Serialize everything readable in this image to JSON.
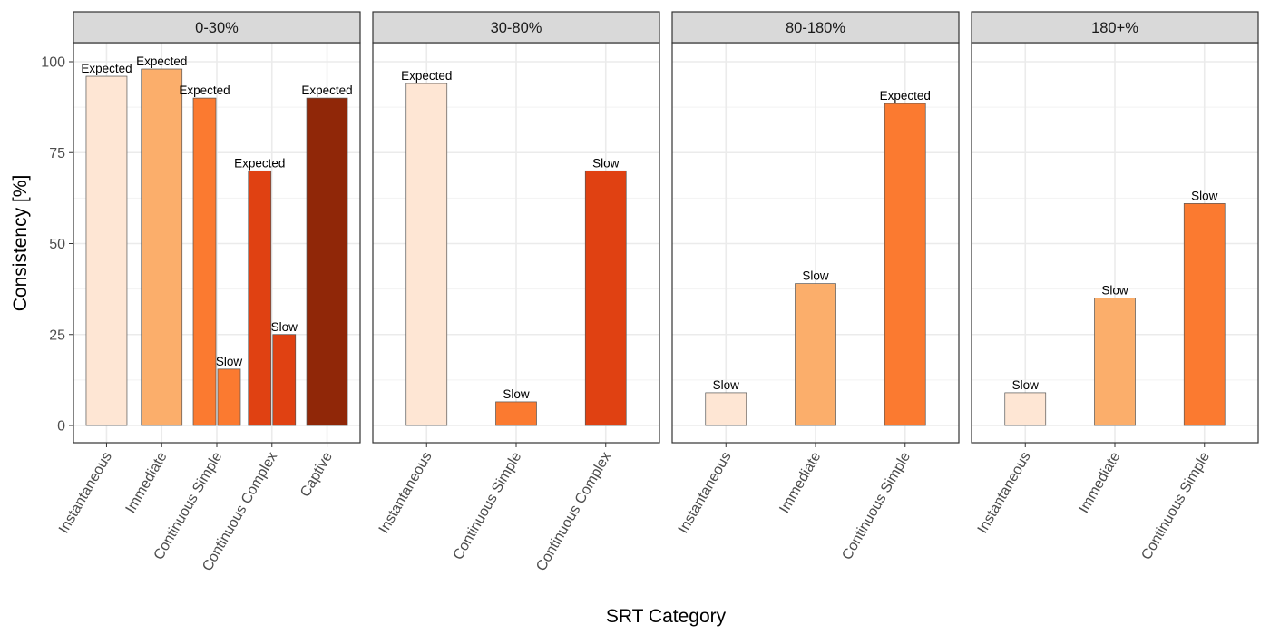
{
  "chart_data": {
    "type": "bar",
    "xlabel": "SRT Category",
    "ylabel": "Consistency [%]",
    "ylim": [
      -5,
      105
    ],
    "yticks": [
      0,
      25,
      50,
      75,
      100
    ],
    "grid": true,
    "legend": "none",
    "fill_scale": {
      "Instantaneous": "#FEE6D4",
      "Immediate": "#FBAE6B",
      "Continuous Simple": "#FB7A30",
      "Continuous Complex": "#E04112",
      "Captive": "#902708"
    },
    "panels": [
      {
        "title": "0-30%",
        "categories": [
          "Instantaneous",
          "Immediate",
          "Continuous Simple",
          "Continuous Complex",
          "Captive"
        ],
        "bars": [
          {
            "category": "Instantaneous",
            "group": "Expected",
            "value": 96,
            "label": "Expected",
            "dodge": "full"
          },
          {
            "category": "Immediate",
            "group": "Expected",
            "value": 98,
            "label": "Expected",
            "dodge": "full"
          },
          {
            "category": "Continuous Simple",
            "group": "Expected",
            "value": 90,
            "label": "Expected",
            "dodge": "left"
          },
          {
            "category": "Continuous Simple",
            "group": "Slow",
            "value": 15.5,
            "label": "Slow",
            "dodge": "right"
          },
          {
            "category": "Continuous Complex",
            "group": "Expected",
            "value": 70,
            "label": "Expected",
            "dodge": "left"
          },
          {
            "category": "Continuous Complex",
            "group": "Slow",
            "value": 25,
            "label": "Slow",
            "dodge": "right"
          },
          {
            "category": "Captive",
            "group": "Expected",
            "value": 90,
            "label": "Expected",
            "dodge": "full"
          }
        ]
      },
      {
        "title": "30-80%",
        "categories": [
          "Instantaneous",
          "Continuous Simple",
          "Continuous Complex"
        ],
        "bars": [
          {
            "category": "Instantaneous",
            "group": "Expected",
            "value": 94,
            "label": "Expected",
            "dodge": "full"
          },
          {
            "category": "Continuous Simple",
            "group": "Slow",
            "value": 6.5,
            "label": "Slow",
            "dodge": "full"
          },
          {
            "category": "Continuous Complex",
            "group": "Slow",
            "value": 70,
            "label": "Slow",
            "dodge": "full"
          }
        ]
      },
      {
        "title": "80-180%",
        "categories": [
          "Instantaneous",
          "Immediate",
          "Continuous Simple"
        ],
        "bars": [
          {
            "category": "Instantaneous",
            "group": "Slow",
            "value": 9,
            "label": "Slow",
            "dodge": "full"
          },
          {
            "category": "Immediate",
            "group": "Slow",
            "value": 39,
            "label": "Slow",
            "dodge": "full"
          },
          {
            "category": "Continuous Simple",
            "group": "Expected",
            "value": 88.5,
            "label": "Expected",
            "dodge": "full"
          }
        ]
      },
      {
        "title": "180+%",
        "categories": [
          "Instantaneous",
          "Immediate",
          "Continuous Simple"
        ],
        "bars": [
          {
            "category": "Instantaneous",
            "group": "Slow",
            "value": 9,
            "label": "Slow",
            "dodge": "full"
          },
          {
            "category": "Immediate",
            "group": "Slow",
            "value": 35,
            "label": "Slow",
            "dodge": "full"
          },
          {
            "category": "Continuous Simple",
            "group": "Slow",
            "value": 61,
            "label": "Slow",
            "dodge": "full"
          }
        ]
      }
    ]
  }
}
